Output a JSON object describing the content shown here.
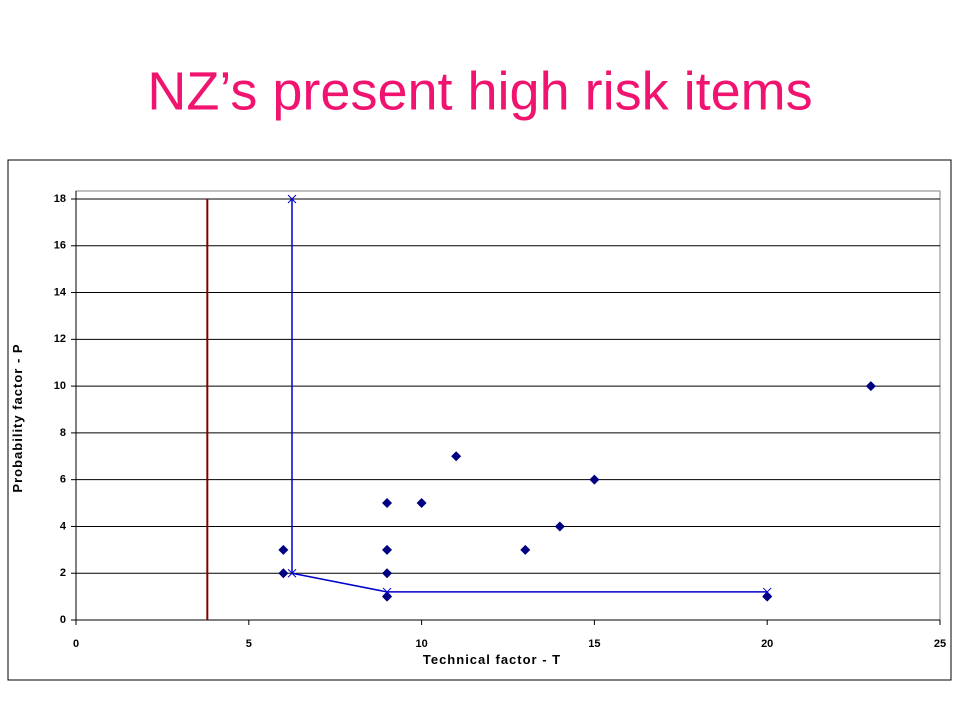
{
  "chart_data": {
    "type": "scatter",
    "title": "NZ’s present high risk items",
    "x_label": "Technical factor - T",
    "y_label": "Probability factor - P",
    "xlim": [
      0,
      25
    ],
    "xticks": [
      0,
      5,
      10,
      15,
      20,
      25
    ],
    "ylim": [
      0,
      18
    ],
    "yticks": [
      0,
      2,
      4,
      6,
      8,
      10,
      12,
      14,
      16,
      18
    ],
    "grid": true,
    "series": [
      {
        "color": "#000080",
        "marker": "diamond",
        "line": false,
        "x": [
          6,
          6,
          9,
          9,
          9,
          9,
          10,
          11,
          13,
          14,
          15,
          20,
          23
        ],
        "values": [
          3,
          2,
          5,
          3,
          2,
          1,
          5,
          7,
          3,
          4,
          6,
          1,
          10
        ]
      },
      {
        "color": "#0000cc",
        "marker": "x",
        "line": true,
        "x": [
          6.25,
          6.25,
          9,
          20
        ],
        "values": [
          18,
          2,
          1.2,
          1.2
        ]
      },
      {
        "color": "#800000",
        "marker": "none",
        "line": true,
        "x": [
          3.8,
          3.8
        ],
        "values": [
          0,
          18
        ]
      }
    ]
  }
}
